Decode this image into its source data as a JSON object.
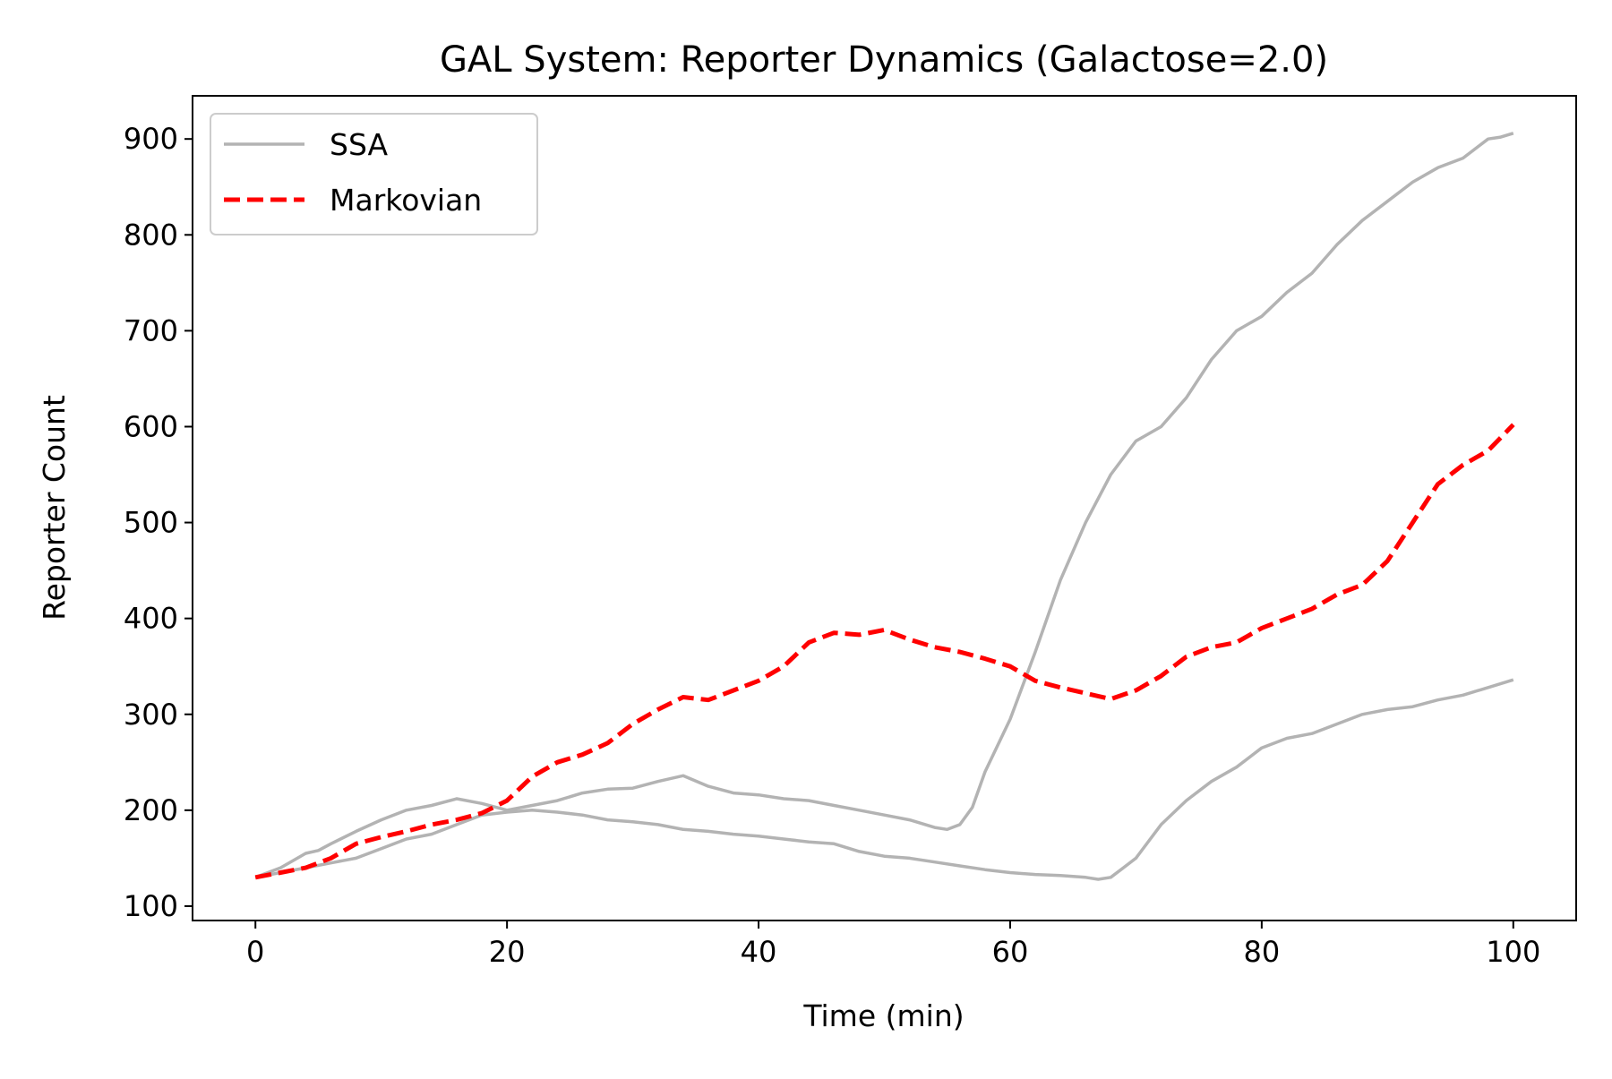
{
  "chart_data": {
    "type": "line",
    "title": "GAL System: Reporter Dynamics (Galactose=2.0)",
    "xlabel": "Time (min)",
    "ylabel": "Reporter Count",
    "xlim": [
      -5,
      105
    ],
    "ylim": [
      85,
      945
    ],
    "xticks": [
      0,
      20,
      40,
      60,
      80,
      100
    ],
    "yticks": [
      100,
      200,
      300,
      400,
      500,
      600,
      700,
      800,
      900
    ],
    "grid": false,
    "legend_position": "upper left",
    "legend": [
      {
        "label": "SSA",
        "color": "#b3b3b3",
        "style": "solid"
      },
      {
        "label": "Markovian",
        "color": "#ff0000",
        "style": "dashed"
      }
    ],
    "series": [
      {
        "name": "SSA",
        "color": "#b3b3b3",
        "style": "solid",
        "x": [
          0,
          2,
          4,
          5,
          6,
          8,
          10,
          12,
          14,
          16,
          18,
          20,
          22,
          24,
          26,
          28,
          30,
          32,
          34,
          36,
          38,
          40,
          42,
          44,
          46,
          48,
          50,
          52,
          54,
          55,
          56,
          57,
          58,
          60,
          62,
          64,
          66,
          68,
          70,
          72,
          74,
          76,
          78,
          80,
          82,
          84,
          86,
          88,
          90,
          92,
          94,
          96,
          98,
          99,
          100
        ],
        "y": [
          130,
          140,
          155,
          158,
          165,
          178,
          190,
          200,
          205,
          212,
          207,
          200,
          205,
          210,
          218,
          222,
          223,
          230,
          236,
          225,
          218,
          216,
          212,
          210,
          205,
          200,
          195,
          190,
          182,
          180,
          185,
          203,
          240,
          295,
          365,
          440,
          500,
          550,
          585,
          600,
          630,
          670,
          700,
          715,
          740,
          760,
          790,
          815,
          835,
          855,
          870,
          880,
          900,
          902,
          906
        ]
      },
      {
        "name": "SSA",
        "color": "#b3b3b3",
        "style": "solid",
        "x": [
          0,
          2,
          4,
          6,
          8,
          10,
          12,
          14,
          16,
          18,
          20,
          22,
          24,
          26,
          28,
          30,
          32,
          34,
          36,
          38,
          40,
          42,
          44,
          46,
          48,
          50,
          52,
          54,
          56,
          58,
          60,
          62,
          64,
          66,
          67,
          68,
          69,
          70,
          72,
          74,
          76,
          78,
          80,
          82,
          84,
          86,
          88,
          90,
          92,
          94,
          96,
          98,
          100
        ],
        "y": [
          130,
          135,
          140,
          145,
          150,
          160,
          170,
          175,
          185,
          195,
          198,
          200,
          198,
          195,
          190,
          188,
          185,
          180,
          178,
          175,
          173,
          170,
          167,
          165,
          157,
          152,
          150,
          146,
          142,
          138,
          135,
          133,
          132,
          130,
          128,
          130,
          140,
          150,
          185,
          210,
          230,
          245,
          265,
          275,
          280,
          290,
          300,
          305,
          308,
          315,
          320,
          328,
          336
        ]
      },
      {
        "name": "Markovian",
        "color": "#ff0000",
        "style": "dashed",
        "x": [
          0,
          2,
          4,
          6,
          8,
          10,
          12,
          14,
          16,
          18,
          20,
          22,
          24,
          26,
          28,
          30,
          32,
          34,
          36,
          38,
          40,
          42,
          44,
          46,
          48,
          50,
          52,
          54,
          56,
          58,
          60,
          62,
          64,
          66,
          68,
          70,
          72,
          74,
          76,
          78,
          80,
          82,
          84,
          86,
          88,
          90,
          92,
          94,
          96,
          98,
          100
        ],
        "y": [
          130,
          135,
          140,
          150,
          165,
          172,
          178,
          185,
          190,
          197,
          210,
          235,
          250,
          258,
          270,
          290,
          305,
          318,
          315,
          325,
          335,
          350,
          375,
          385,
          383,
          388,
          378,
          370,
          365,
          358,
          350,
          335,
          328,
          322,
          316,
          325,
          340,
          360,
          370,
          375,
          390,
          400,
          410,
          425,
          435,
          460,
          500,
          540,
          560,
          575,
          602
        ]
      }
    ]
  }
}
